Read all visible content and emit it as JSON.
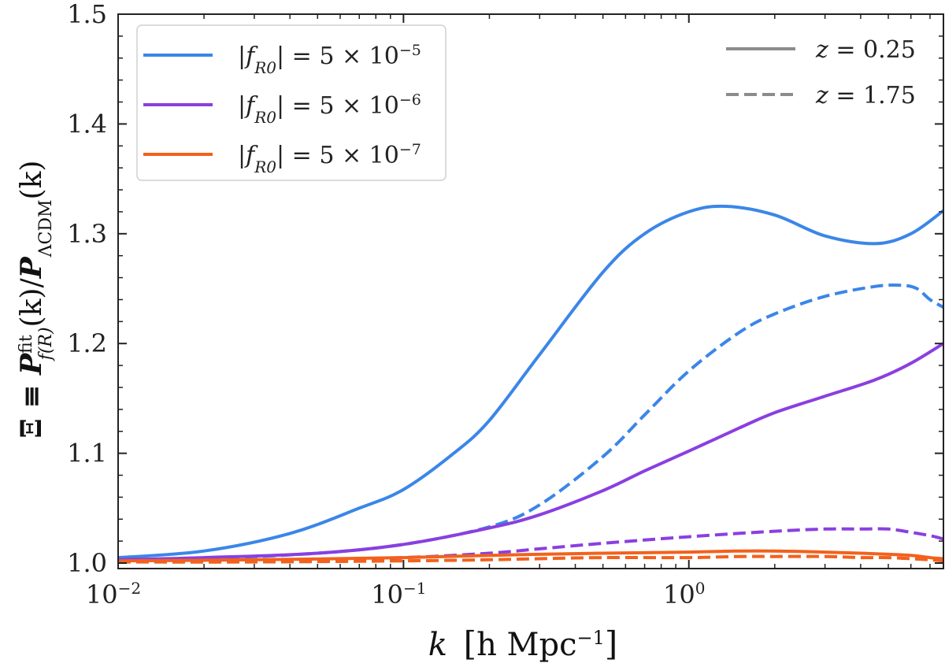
{
  "chart_data": {
    "type": "line",
    "xscale": "log",
    "xlim": [
      0.01,
      7.8
    ],
    "ylim": [
      0.995,
      1.5
    ],
    "xlabel": {
      "var": "k",
      "text": "h Mpc",
      "exponent": "−1"
    },
    "ylabel": {
      "lhs": "Ξ ≡ ",
      "num": "P",
      "num_sup": "fit",
      "num_sub": "f(R)",
      "mid": "(k)/",
      "den": "P",
      "den_sub": "ΛCDM",
      "tail": "(k)"
    },
    "yticks": [
      {
        "value": 1.0,
        "label": "1.0"
      },
      {
        "value": 1.1,
        "label": "1.1"
      },
      {
        "value": 1.2,
        "label": "1.2"
      },
      {
        "value": 1.3,
        "label": "1.3"
      },
      {
        "value": 1.4,
        "label": "1.4"
      },
      {
        "value": 1.5,
        "label": "1.5"
      }
    ],
    "xticks": [
      {
        "value": 0.01,
        "base": "10",
        "exp": "−2"
      },
      {
        "value": 0.1,
        "base": "10",
        "exp": "−1"
      },
      {
        "value": 1,
        "base": "10",
        "exp": "0"
      }
    ],
    "series": [
      {
        "name": "|fR0|=5×10^-5, z=0.25",
        "model": "5e-5",
        "z": "0.25",
        "color": "#3B86E8",
        "dash": "solid",
        "x": [
          0.01,
          0.02,
          0.04,
          0.07,
          0.1,
          0.15,
          0.2,
          0.3,
          0.5,
          0.7,
          1.0,
          1.35,
          2.0,
          3.0,
          4.5,
          6.0,
          7.8
        ],
        "y": [
          1.005,
          1.011,
          1.027,
          1.05,
          1.067,
          1.1,
          1.13,
          1.19,
          1.265,
          1.3,
          1.32,
          1.325,
          1.317,
          1.298,
          1.291,
          1.3,
          1.321
        ]
      },
      {
        "name": "|fR0|=5×10^-5, z=1.75",
        "model": "5e-5",
        "z": "1.75",
        "color": "#3B86E8",
        "dash": "dashed",
        "x": [
          0.01,
          0.02,
          0.05,
          0.1,
          0.2,
          0.3,
          0.5,
          0.7,
          1.0,
          1.5,
          2.0,
          3.0,
          4.5,
          5.6,
          6.3,
          7.0,
          7.8
        ],
        "y": [
          1.002,
          1.004,
          1.009,
          1.017,
          1.033,
          1.053,
          1.097,
          1.135,
          1.175,
          1.21,
          1.227,
          1.243,
          1.252,
          1.253,
          1.25,
          1.24,
          1.233
        ]
      },
      {
        "name": "|fR0|=5×10^-6, z=0.25",
        "model": "5e-6",
        "z": "0.25",
        "color": "#8A3FE0",
        "dash": "solid",
        "x": [
          0.01,
          0.02,
          0.05,
          0.1,
          0.2,
          0.3,
          0.5,
          0.7,
          1.0,
          1.5,
          2.0,
          3.0,
          4.5,
          6.0,
          7.8
        ],
        "y": [
          1.003,
          1.005,
          1.009,
          1.017,
          1.032,
          1.044,
          1.066,
          1.084,
          1.102,
          1.123,
          1.137,
          1.152,
          1.167,
          1.182,
          1.2
        ]
      },
      {
        "name": "|fR0|=5×10^-6, z=1.75",
        "model": "5e-6",
        "z": "1.75",
        "color": "#8A3FE0",
        "dash": "dashed",
        "x": [
          0.01,
          0.03,
          0.1,
          0.2,
          0.3,
          0.5,
          1.0,
          2.0,
          3.0,
          4.0,
          5.0,
          6.0,
          7.0,
          7.8
        ],
        "y": [
          1.001,
          1.002,
          1.005,
          1.009,
          1.013,
          1.018,
          1.024,
          1.029,
          1.031,
          1.031,
          1.031,
          1.028,
          1.025,
          1.022
        ]
      },
      {
        "name": "|fR0|=5×10^-7, z=0.25",
        "model": "5e-7",
        "z": "0.25",
        "color": "#F2611D",
        "dash": "solid",
        "x": [
          0.01,
          0.03,
          0.1,
          0.2,
          0.3,
          0.5,
          1.0,
          1.5,
          2.0,
          3.0,
          4.0,
          5.0,
          6.0,
          7.0,
          7.8
        ],
        "y": [
          1.002,
          1.003,
          1.005,
          1.007,
          1.008,
          1.009,
          1.01,
          1.011,
          1.011,
          1.01,
          1.009,
          1.008,
          1.007,
          1.005,
          1.004
        ]
      },
      {
        "name": "|fR0|=5×10^-7, z=1.75",
        "model": "5e-7",
        "z": "1.75",
        "color": "#F2611D",
        "dash": "dashed",
        "x": [
          0.01,
          0.03,
          0.1,
          0.2,
          0.3,
          0.5,
          1.0,
          1.5,
          2.0,
          3.0,
          4.0,
          5.0,
          6.0,
          7.0,
          7.8
        ],
        "y": [
          1.001,
          1.001,
          1.002,
          1.003,
          1.004,
          1.005,
          1.005,
          1.006,
          1.006,
          1.006,
          1.005,
          1.005,
          1.004,
          1.003,
          1.002
        ]
      }
    ],
    "legend_models": [
      {
        "label_var": "f",
        "label_sub": "R0",
        "label_rhs": "5 × 10",
        "label_exp": "−5",
        "color": "#3B86E8"
      },
      {
        "label_var": "f",
        "label_sub": "R0",
        "label_rhs": "5 × 10",
        "label_exp": "−6",
        "color": "#8A3FE0"
      },
      {
        "label_var": "f",
        "label_sub": "R0",
        "label_rhs": "5 × 10",
        "label_exp": "−7",
        "color": "#F2611D"
      }
    ],
    "legend_models_position": "top-left",
    "legend_redshift": [
      {
        "label": "z = 0.25",
        "var": "z",
        "value": "0.25",
        "style": "solid",
        "color": "#8C8C8C"
      },
      {
        "label": "z = 1.75",
        "var": "z",
        "value": "1.75",
        "style": "dashed",
        "color": "#8C8C8C"
      }
    ],
    "legend_redshift_position": "top-right",
    "grid": false
  }
}
